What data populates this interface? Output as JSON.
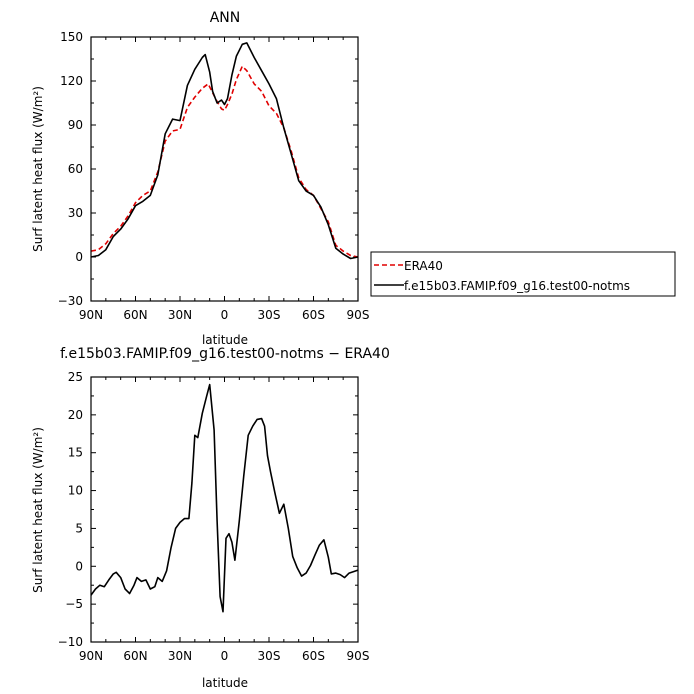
{
  "chart_data": [
    {
      "type": "line",
      "title": "ANN",
      "xlabel": "latitude",
      "ylabel": "Surf latent heat flux (W/m²)",
      "ylim": [
        -30,
        150
      ],
      "xlim": [
        90,
        -90
      ],
      "x_ticks": [
        90,
        60,
        30,
        0,
        -30,
        -60,
        -90
      ],
      "x_tick_labels": [
        "90N",
        "60N",
        "30N",
        "0",
        "30S",
        "60S",
        "90S"
      ],
      "y_ticks": [
        -30,
        0,
        30,
        60,
        90,
        120,
        150
      ],
      "y_tick_labels": [
        "−30",
        "0",
        "30",
        "60",
        "90",
        "120",
        "150"
      ],
      "grid": false,
      "legend": "right",
      "series": [
        {
          "name": "ERA40",
          "color": "#e00000",
          "dash": true,
          "points": [
            [
              90,
              4
            ],
            [
              85,
              5
            ],
            [
              80,
              9
            ],
            [
              75,
              16
            ],
            [
              70,
              21
            ],
            [
              65,
              28
            ],
            [
              60,
              37
            ],
            [
              55,
              42
            ],
            [
              50,
              45
            ],
            [
              45,
              58
            ],
            [
              40,
              79
            ],
            [
              35,
              86
            ],
            [
              30,
              87
            ],
            [
              25,
              102
            ],
            [
              20,
              109
            ],
            [
              15,
              115
            ],
            [
              11,
              118
            ],
            [
              8,
              112
            ],
            [
              5,
              106
            ],
            [
              2,
              101
            ],
            [
              0,
              100
            ],
            [
              -2,
              104
            ],
            [
              -5,
              111
            ],
            [
              -8,
              121
            ],
            [
              -12,
              130
            ],
            [
              -15,
              127
            ],
            [
              -20,
              118
            ],
            [
              -25,
              113
            ],
            [
              -30,
              103
            ],
            [
              -35,
              98
            ],
            [
              -40,
              88
            ],
            [
              -45,
              72
            ],
            [
              -50,
              54
            ],
            [
              -55,
              46
            ],
            [
              -60,
              42
            ],
            [
              -65,
              33
            ],
            [
              -70,
              24
            ],
            [
              -75,
              8
            ],
            [
              -80,
              4
            ],
            [
              -85,
              1
            ],
            [
              -90,
              0
            ]
          ]
        },
        {
          "name": "f.e15b03.FAMIP.f09_g16.test00-notms",
          "color": "#000000",
          "dash": false,
          "points": [
            [
              90,
              0
            ],
            [
              85,
              1
            ],
            [
              80,
              5
            ],
            [
              75,
              14
            ],
            [
              70,
              19
            ],
            [
              65,
              26
            ],
            [
              60,
              35
            ],
            [
              55,
              38
            ],
            [
              50,
              42
            ],
            [
              45,
              56
            ],
            [
              40,
              84
            ],
            [
              35,
              94
            ],
            [
              30,
              93
            ],
            [
              25,
              117
            ],
            [
              20,
              128
            ],
            [
              15,
              136
            ],
            [
              13,
              138
            ],
            [
              10,
              126
            ],
            [
              8,
              113
            ],
            [
              5,
              105
            ],
            [
              2,
              107
            ],
            [
              0,
              104
            ],
            [
              -2,
              108
            ],
            [
              -5,
              124
            ],
            [
              -8,
              137
            ],
            [
              -12,
              145
            ],
            [
              -15,
              146
            ],
            [
              -20,
              136
            ],
            [
              -25,
              127
            ],
            [
              -30,
              118
            ],
            [
              -35,
              108
            ],
            [
              -40,
              88
            ],
            [
              -45,
              70
            ],
            [
              -50,
              52
            ],
            [
              -55,
              45
            ],
            [
              -60,
              42
            ],
            [
              -65,
              34
            ],
            [
              -70,
              22
            ],
            [
              -75,
              6
            ],
            [
              -80,
              2
            ],
            [
              -85,
              -1
            ],
            [
              -90,
              0
            ]
          ]
        }
      ]
    },
    {
      "type": "line",
      "title": "f.e15b03.FAMIP.f09_g16.test00-notms − ERA40",
      "xlabel": "latitude",
      "ylabel": "Surf latent heat flux (W/m²)",
      "ylim": [
        -10,
        25
      ],
      "xlim": [
        90,
        -90
      ],
      "x_ticks": [
        90,
        60,
        30,
        0,
        -30,
        -60,
        -90
      ],
      "x_tick_labels": [
        "90N",
        "60N",
        "30N",
        "0",
        "30S",
        "60S",
        "90S"
      ],
      "y_ticks": [
        -10,
        -5,
        0,
        5,
        10,
        15,
        20,
        25
      ],
      "y_tick_labels": [
        "−10",
        "−5",
        "0",
        "5",
        "10",
        "15",
        "20",
        "25"
      ],
      "grid": false,
      "series": [
        {
          "color": "#000000",
          "points": [
            [
              90,
              -3.8
            ],
            [
              87,
              -3
            ],
            [
              84,
              -2.5
            ],
            [
              81,
              -2.7
            ],
            [
              78,
              -1.8
            ],
            [
              75,
              -1
            ],
            [
              73,
              -0.8
            ],
            [
              70,
              -1.5
            ],
            [
              67,
              -3
            ],
            [
              64,
              -3.6
            ],
            [
              61,
              -2.5
            ],
            [
              59,
              -1.5
            ],
            [
              56,
              -2
            ],
            [
              53,
              -1.8
            ],
            [
              50,
              -3
            ],
            [
              47,
              -2.7
            ],
            [
              45,
              -1.5
            ],
            [
              42,
              -2
            ],
            [
              39,
              -0.6
            ],
            [
              36,
              2.5
            ],
            [
              33,
              5
            ],
            [
              30,
              5.8
            ],
            [
              27,
              6.3
            ],
            [
              24,
              6.3
            ],
            [
              22,
              11
            ],
            [
              20,
              17.3
            ],
            [
              18,
              17
            ],
            [
              15,
              20.2
            ],
            [
              12,
              22.5
            ],
            [
              10,
              24
            ],
            [
              7,
              18
            ],
            [
              5,
              6
            ],
            [
              3,
              -4
            ],
            [
              1,
              -6
            ],
            [
              -1,
              3.7
            ],
            [
              -3,
              4.3
            ],
            [
              -5,
              3.2
            ],
            [
              -7,
              0.8
            ],
            [
              -10,
              6
            ],
            [
              -13,
              12
            ],
            [
              -16,
              17.3
            ],
            [
              -19,
              18.5
            ],
            [
              -22,
              19.4
            ],
            [
              -25,
              19.5
            ],
            [
              -27,
              18.5
            ],
            [
              -29,
              14.6
            ],
            [
              -31,
              12.5
            ],
            [
              -34,
              9.7
            ],
            [
              -37,
              7
            ],
            [
              -40,
              8.2
            ],
            [
              -43,
              5
            ],
            [
              -46,
              1.3
            ],
            [
              -49,
              -0.2
            ],
            [
              -52,
              -1.3
            ],
            [
              -55,
              -0.9
            ],
            [
              -58,
              0.1
            ],
            [
              -61,
              1.5
            ],
            [
              -64,
              2.8
            ],
            [
              -67,
              3.5
            ],
            [
              -70,
              1.2
            ],
            [
              -72,
              -1
            ],
            [
              -75,
              -0.9
            ],
            [
              -78,
              -1.1
            ],
            [
              -81,
              -1.5
            ],
            [
              -84,
              -0.9
            ],
            [
              -87,
              -0.7
            ],
            [
              -90,
              -0.5
            ]
          ]
        }
      ]
    }
  ]
}
